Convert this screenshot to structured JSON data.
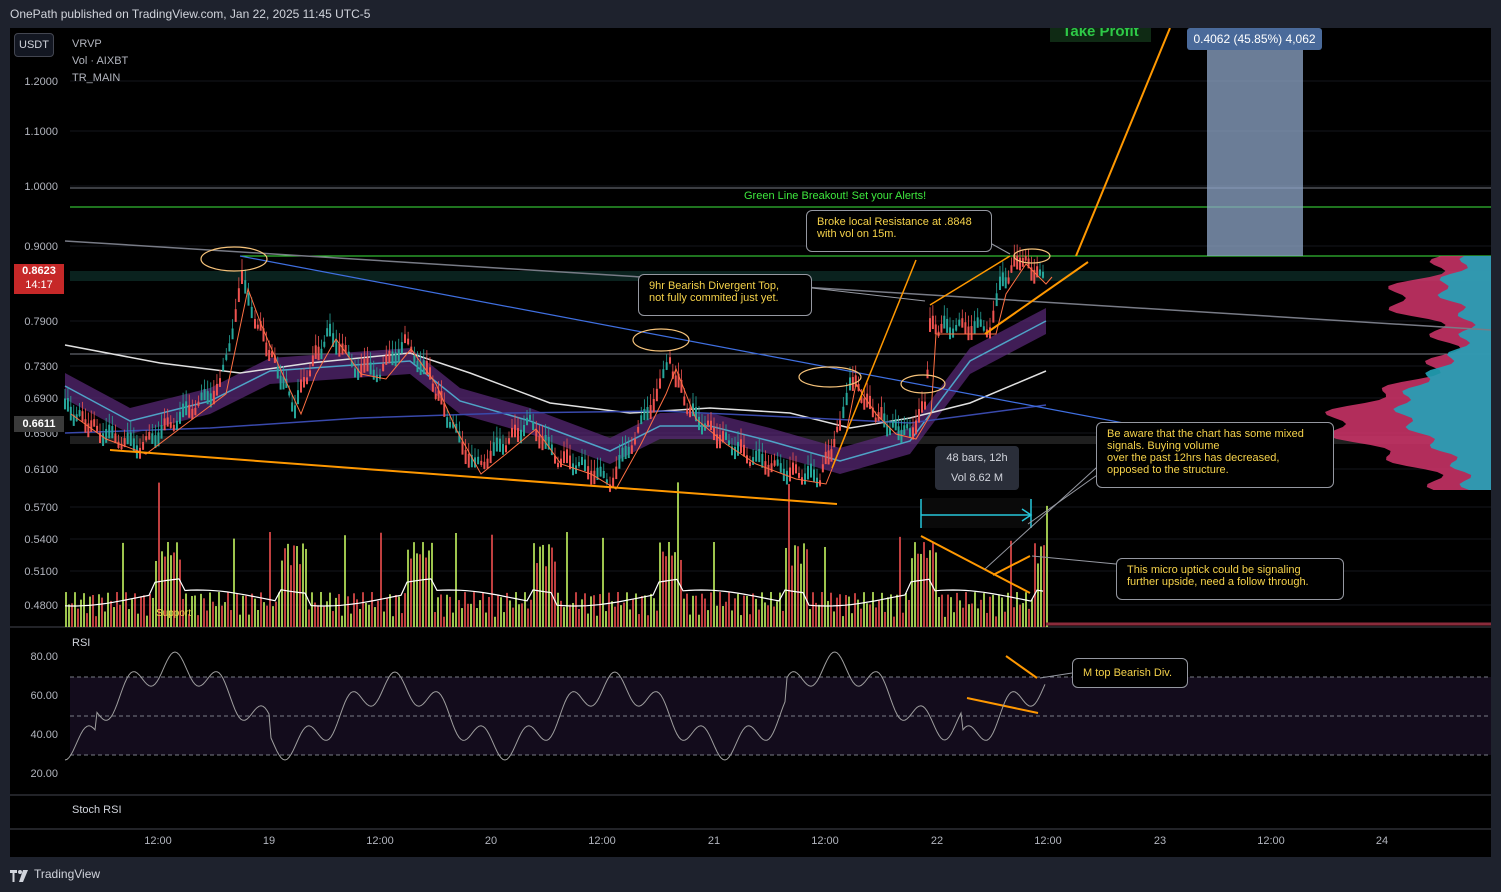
{
  "header": {
    "publish_line": "OnePath published on TradingView.com, Jan 22, 2025 11:45 UTC-5"
  },
  "toolbar": {
    "currency_button": "USDT"
  },
  "legend": {
    "line1": "VRVP",
    "line2": "Vol · AIXBT",
    "line3": "TR_MAIN"
  },
  "price_tags": {
    "current_price": "0.8623",
    "countdown": "14:17",
    "ma_price": "0.6611"
  },
  "y_axis": [
    "1.2000",
    "1.1000",
    "1.0000",
    "0.9000",
    "0.7900",
    "0.7300",
    "0.6900",
    "0.6500",
    "0.6100",
    "0.5700",
    "0.5400",
    "0.5100",
    "0.4800"
  ],
  "rsi_axis": [
    "80.00",
    "60.00",
    "40.00",
    "20.00"
  ],
  "x_axis": [
    "12:00",
    "19",
    "12:00",
    "20",
    "12:00",
    "21",
    "12:00",
    "22",
    "12:00",
    "23",
    "12:00",
    "24"
  ],
  "annotations": {
    "take_profit": "Take Profit",
    "measure": "0.4062 (45.85%) 4,062",
    "breakout": "Green Line Breakout! Set your Alerts!",
    "resistance_l1": "Broke local Resistance at .8848",
    "resistance_l2": "with vol on 15m.",
    "bearish_l1": "9hr Bearish Divergent Top,",
    "bearish_l2": "not fully commited just yet.",
    "mixed_l1": "Be aware that the chart has some mixed",
    "mixed_l2": "signals. Buying volume",
    "mixed_l3": "over the past 12hrs has decreased,",
    "mixed_l4": "opposed to the structure.",
    "uptick_l1": "This micro uptick could be signaling",
    "uptick_l2": "further upside, need a follow through.",
    "mtop": "M top Bearish Div.",
    "bars_l1": "48 bars, 12h",
    "bars_l2": "Vol 8.62 M",
    "support": "Support"
  },
  "panels": {
    "rsi": "RSI",
    "stoch_rsi": "Stoch RSI"
  },
  "footer": {
    "brand": "TradingView"
  },
  "colors": {
    "background": "#000000",
    "up_candle": "#26a69a",
    "down_candle": "#ef5350",
    "trendline_orange": "#ff9800",
    "breakout_green": "#3ee83e",
    "price_tag_red": "#c62828"
  }
}
